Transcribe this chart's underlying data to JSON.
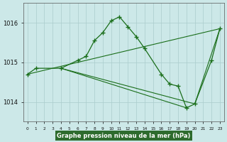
{
  "title": "Graphe pression niveau de la mer (hPa)",
  "bg_color": "#cce8e8",
  "grid_color": "#aacccc",
  "line_color": "#1a6e1a",
  "ylim": [
    1013.5,
    1016.5
  ],
  "xlim": [
    -0.5,
    23.5
  ],
  "yticks": [
    1014.0,
    1015.0,
    1016.0
  ],
  "xticks": [
    0,
    1,
    2,
    3,
    4,
    5,
    6,
    7,
    8,
    9,
    10,
    11,
    12,
    13,
    14,
    15,
    16,
    17,
    18,
    19,
    20,
    21,
    22,
    23
  ],
  "lines": [
    {
      "x": [
        0,
        1,
        4,
        6,
        7,
        8,
        9,
        10,
        11,
        12,
        13,
        14,
        16,
        17,
        18,
        19,
        20,
        22,
        23
      ],
      "y": [
        1014.7,
        1014.85,
        1014.85,
        1015.05,
        1015.15,
        1015.55,
        1015.75,
        1016.05,
        1016.15,
        1015.9,
        1015.65,
        1015.35,
        1014.7,
        1014.45,
        1014.4,
        1013.85,
        1013.95,
        1015.05,
        1015.85
      ]
    },
    {
      "x": [
        0,
        23
      ],
      "y": [
        1014.7,
        1015.85
      ]
    },
    {
      "x": [
        4,
        19
      ],
      "y": [
        1014.85,
        1013.85
      ]
    },
    {
      "x": [
        4,
        20,
        23
      ],
      "y": [
        1014.85,
        1013.95,
        1015.85
      ]
    }
  ]
}
